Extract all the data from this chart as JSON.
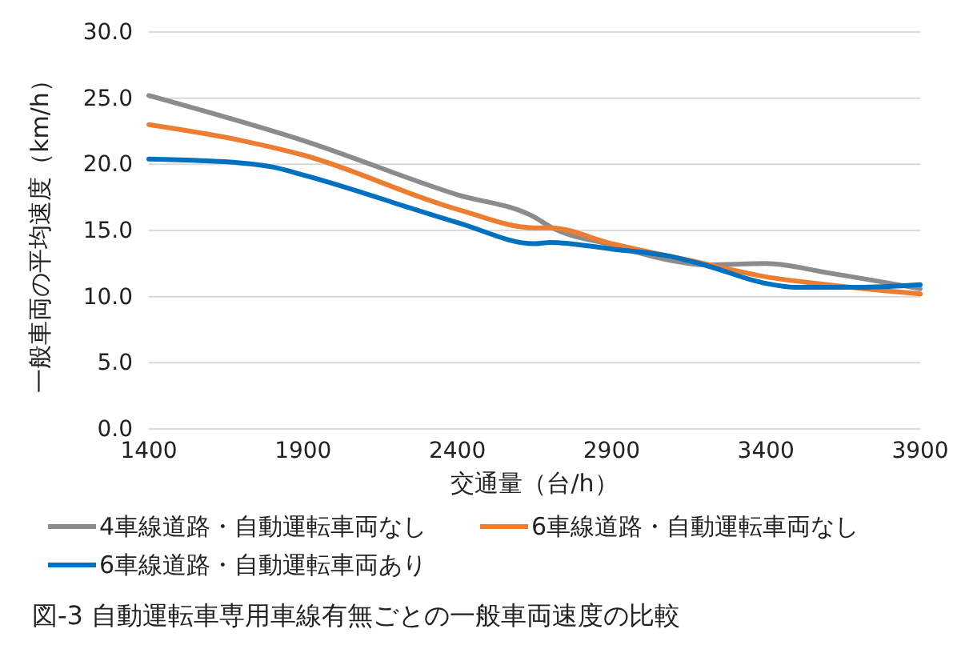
{
  "chart_data": {
    "type": "line",
    "xlabel": "交通量（台/h）",
    "ylabel": "一般車両の平均速度（km/h）",
    "xlim": [
      1400,
      3900
    ],
    "xticks": [
      1400,
      1900,
      2400,
      2900,
      3400,
      3900
    ],
    "ylim": [
      0,
      30
    ],
    "yticks": [
      {
        "value": 0,
        "label": "0.0"
      },
      {
        "value": 5,
        "label": "5.0"
      },
      {
        "value": 10,
        "label": "10.0"
      },
      {
        "value": 15,
        "label": "15.0"
      },
      {
        "value": 20,
        "label": "20.0"
      },
      {
        "value": 25,
        "label": "25.0"
      },
      {
        "value": 30,
        "label": "30.0"
      }
    ],
    "grid": "y",
    "legend": "bottom",
    "marker": "none",
    "line_style": "solid",
    "annotations": [
      "図-3 自動運転車専用車線有無ごとの一般車両速度の比較"
    ],
    "series": [
      {
        "name": "4車線道路・自動運転車両なし",
        "color": "#8c8c8c",
        "x": [
          1400,
          1900,
          2400,
          2650,
          2700,
          2900,
          3100,
          3200,
          3400,
          3600,
          3900
        ],
        "values": [
          25.2,
          21.8,
          17.7,
          16.0,
          15.3,
          13.9,
          12.7,
          12.4,
          12.5,
          11.8,
          10.6
        ]
      },
      {
        "name": "6車線道路・自動運転車両なし",
        "color": "#ed7d31",
        "x": [
          1400,
          1700,
          1900,
          2400,
          2650,
          2700,
          2900,
          3200,
          3400,
          3600,
          3900
        ],
        "values": [
          23.0,
          21.8,
          20.7,
          16.6,
          15.2,
          15.2,
          14.0,
          12.5,
          11.5,
          10.9,
          10.2
        ]
      },
      {
        "name": "6車線道路・自動運転車両あり",
        "color": "#0070c0",
        "x": [
          1400,
          1700,
          1800,
          1900,
          2400,
          2650,
          2700,
          2900,
          3100,
          3200,
          3400,
          3500,
          3700,
          3900
        ],
        "values": [
          20.4,
          20.1,
          19.8,
          19.2,
          15.6,
          14.0,
          14.1,
          13.6,
          13.0,
          12.4,
          11.0,
          10.7,
          10.7,
          10.9
        ]
      }
    ]
  }
}
